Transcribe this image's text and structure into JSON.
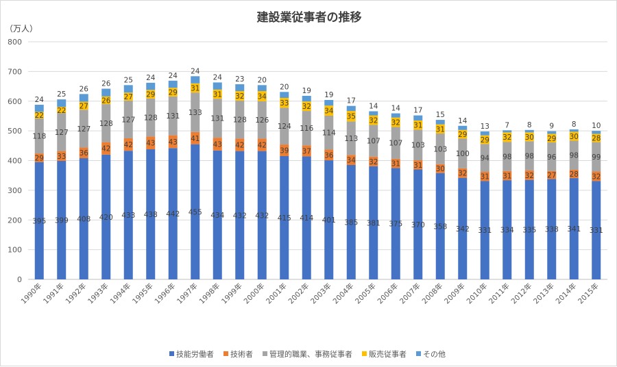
{
  "chart_data": {
    "type": "bar",
    "stacked": true,
    "title": "建設業従事者の推移",
    "ylabel": "（万人）",
    "xlabel": "",
    "ylim": [
      0,
      800
    ],
    "yticks": [
      0,
      100,
      200,
      300,
      400,
      500,
      600,
      700,
      800
    ],
    "grid": true,
    "legend_position": "bottom",
    "categories": [
      "1990年",
      "1991年",
      "1992年",
      "1993年",
      "1994年",
      "1995年",
      "1996年",
      "1997年",
      "1998年",
      "1999年",
      "2000年",
      "2001年",
      "2002年",
      "2003年",
      "2004年",
      "2005年",
      "2006年",
      "2007年",
      "2008年",
      "2009年",
      "2010年",
      "2011年",
      "2012年",
      "2013年",
      "2014年",
      "2015年"
    ],
    "series": [
      {
        "name": "技能労働者",
        "color": "#4472c4",
        "values": [
          395,
          399,
          408,
          420,
          433,
          438,
          442,
          455,
          434,
          432,
          432,
          415,
          414,
          401,
          385,
          381,
          375,
          370,
          358,
          342,
          331,
          334,
          335,
          338,
          341,
          331
        ]
      },
      {
        "name": "技術者",
        "color": "#ed7d31",
        "values": [
          29,
          33,
          36,
          42,
          42,
          43,
          43,
          41,
          43,
          42,
          42,
          39,
          37,
          36,
          34,
          32,
          31,
          31,
          30,
          32,
          31,
          31,
          32,
          27,
          28,
          32
        ]
      },
      {
        "name": "管理的職業、事務従事者",
        "color": "#a5a5a5",
        "values": [
          118,
          127,
          127,
          128,
          127,
          128,
          131,
          133,
          131,
          128,
          126,
          124,
          116,
          114,
          113,
          107,
          107,
          103,
          103,
          100,
          94,
          98,
          98,
          96,
          98,
          99
        ]
      },
      {
        "name": "販売従事者",
        "color": "#ffc000",
        "values": [
          22,
          22,
          27,
          26,
          27,
          29,
          29,
          31,
          31,
          32,
          34,
          33,
          32,
          34,
          35,
          32,
          32,
          31,
          31,
          29,
          29,
          32,
          30,
          29,
          30,
          28
        ]
      },
      {
        "name": "その他",
        "color": "#5b9bd5",
        "values": [
          24,
          25,
          26,
          26,
          25,
          24,
          24,
          24,
          24,
          23,
          20,
          20,
          19,
          19,
          17,
          14,
          14,
          17,
          15,
          14,
          13,
          7,
          8,
          9,
          8,
          10
        ]
      }
    ]
  }
}
